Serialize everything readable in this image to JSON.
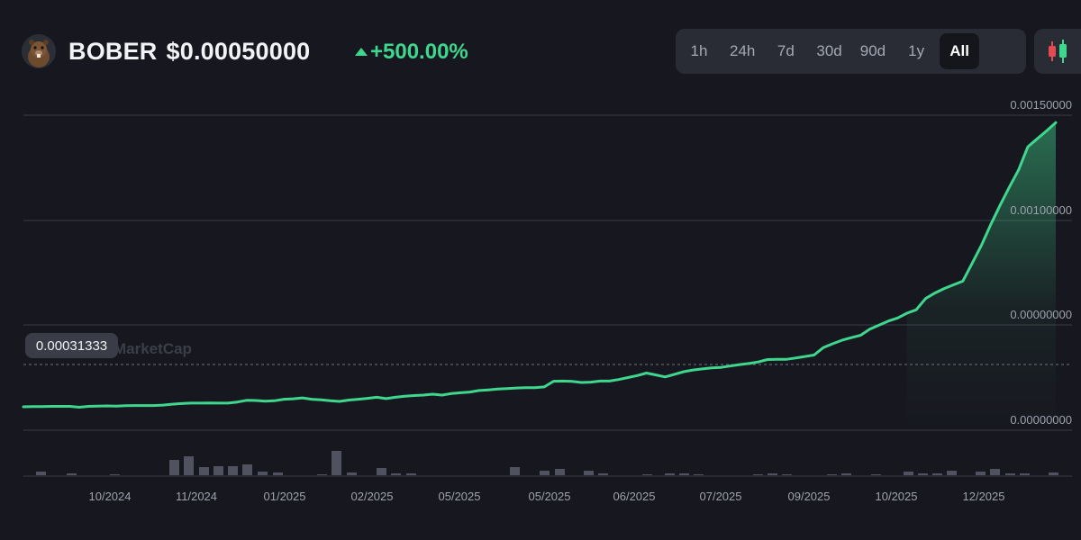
{
  "header": {
    "symbol": "BOBER",
    "price": "$0.00050000",
    "change": "+500.00%",
    "avatar_icon": "bober-beaver-avatar-icon"
  },
  "timeframes": {
    "items": [
      "1h",
      "24h",
      "7d",
      "30d",
      "90d",
      "1y",
      "All"
    ],
    "active": "All"
  },
  "candle_toggle_icon": "candlestick-chart-icon",
  "price_badge": "0.00031333",
  "watermark": "MarketCap",
  "colors": {
    "background": "#17181f",
    "line": "#3fd68e",
    "positive": "#3fd68e",
    "volume": "#5a5d6b",
    "grid": "#3a3c47",
    "panel": "#2a2c35"
  },
  "chart_data": {
    "type": "line",
    "y_tick_labels": [
      "0.00150000",
      "0.00100000",
      "0.00000000",
      "0.00000000"
    ],
    "x_tick_labels": [
      "10/2024",
      "11/2024",
      "01/2025",
      "02/2025",
      "05/2025",
      "05/2025",
      "06/2025",
      "07/2025",
      "09/2025",
      "10/2025",
      "12/2025"
    ],
    "ylim": [
      0,
      0.0015
    ],
    "grid": true,
    "current_price_line": 0.00031333,
    "series": [
      {
        "values": [
          0.00014,
          0.000141,
          0.000141,
          0.000142,
          0.000142,
          0.000142,
          0.000138,
          0.000142,
          0.000143,
          0.000144,
          0.000143,
          0.000145,
          0.000146,
          0.000146,
          0.000146,
          0.000148,
          0.000152,
          0.000155,
          0.000157,
          0.000157,
          0.000158,
          0.000157,
          0.000157,
          0.000162,
          0.00017,
          0.000169,
          0.000166,
          0.000168,
          0.000175,
          0.000177,
          0.000181,
          0.000175,
          0.000172,
          0.000168,
          0.000165,
          0.000171,
          0.000175,
          0.000179,
          0.000184,
          0.000178,
          0.000184,
          0.000189,
          0.000192,
          0.000194,
          0.000198,
          0.000194,
          0.000201,
          0.000205,
          0.000208,
          0.000215,
          0.000218,
          0.000222,
          0.000224,
          0.000227,
          0.000228,
          0.000228,
          0.000232,
          0.000258,
          0.000259,
          0.000257,
          0.000252,
          0.000254,
          0.000259,
          0.000259,
          0.000266,
          0.000275,
          0.000284,
          0.000296,
          0.000287,
          0.000278,
          0.00029,
          0.000302,
          0.00031,
          0.000315,
          0.00032,
          0.000322,
          0.000328,
          0.000335,
          0.00034,
          0.000347,
          0.000358,
          0.000359,
          0.000359,
          0.000365,
          0.000372,
          0.000379,
          0.000413,
          0.000431,
          0.000447,
          0.000459,
          0.00047,
          0.000498,
          0.000517,
          0.000536,
          0.00055,
          0.000572,
          0.000588,
          0.00064,
          0.000665,
          0.000686,
          0.000703,
          0.00072,
          0.000802,
          0.000885,
          0.00098,
          0.001072,
          0.001158,
          0.00124,
          0.00135,
          0.001388,
          0.001425,
          0.001465
        ]
      }
    ],
    "volume": [
      4,
      0,
      0,
      3,
      0,
      0,
      0,
      0,
      1,
      0,
      0,
      0,
      0,
      0,
      0,
      0,
      0,
      0,
      0,
      0,
      0,
      17,
      21,
      9,
      10,
      10,
      10,
      12,
      4,
      2,
      0,
      0,
      0,
      0,
      0,
      0,
      0,
      0,
      0,
      0,
      0,
      0,
      0,
      0,
      0,
      0,
      0,
      0,
      0,
      0,
      0,
      0,
      0,
      0,
      0,
      0,
      0,
      0,
      0,
      0,
      0,
      0,
      0,
      0,
      0,
      0,
      0,
      0,
      0,
      0,
      0,
      0,
      0,
      0,
      0,
      0,
      0,
      0,
      0,
      0,
      0,
      0,
      0,
      0,
      0,
      0,
      0,
      0,
      0,
      0,
      0,
      0,
      0,
      0,
      0,
      0,
      0,
      0,
      0,
      0,
      0,
      0,
      0,
      0,
      0,
      0,
      0,
      0,
      0,
      0,
      0,
      0,
      0,
      0,
      0,
      0,
      0,
      0,
      0,
      0,
      0,
      0,
      0,
      0,
      0,
      0
    ]
  }
}
